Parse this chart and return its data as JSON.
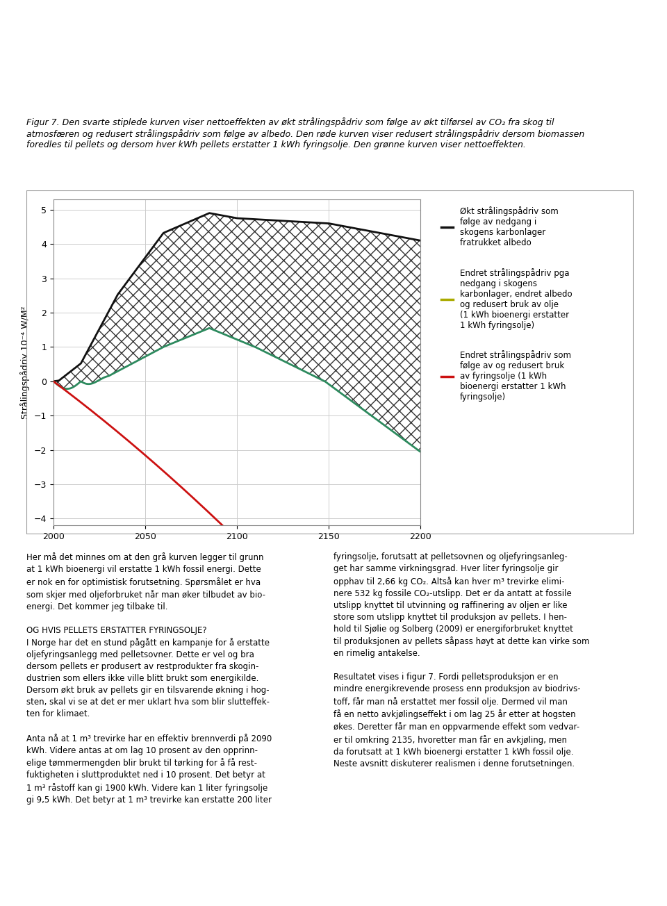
{
  "ylabel": "Strålingspådriv 10⁻⁴ W/M²",
  "xlim": [
    2000,
    2200
  ],
  "ylim": [
    -4.2,
    5.3
  ],
  "yticks": [
    -4,
    -3,
    -2,
    -1,
    0,
    1,
    2,
    3,
    4,
    5
  ],
  "xticks": [
    2000,
    2050,
    2100,
    2150,
    2200
  ],
  "black_color": "#111111",
  "green_color": "#2d8a5e",
  "red_color": "#cc1111",
  "grid_color": "#cccccc",
  "fig_bg": "#ffffff",
  "legend_entries": [
    "Økt strålingspådriv som\nfølge av nedgang i\nskogens karbonlager\nfratrukket albedo",
    "Endret strålingspådriv pga\nnedgang i skogens\nkarbonlager, endret albedo\nog redusert bruk av olje\n(1 kWh bioenergi erstatter\n1 kWh fyringsolje)",
    "Endret strålingspådriv som\nfølge av og redusert bruk\nav fyringsolje (1 kWh\nbioenergi erstatter 1 kWh\nfyringsolje)"
  ],
  "legend_colors": [
    "#111111",
    "#aaaa00",
    "#cc1111"
  ],
  "top_text_lines": [
    "Figur 7. Den svarte stiplede kurven viser nettoeffekten av økt strålingspådriv som følge av økt tilførsel av CO₂ fra skog til",
    "atmosfæren og redusert strålingspådriv som følge av albedo. Den røde kurven viser redusert strålingspådriv dersom biomassen",
    "foredles til pellets og dersom hver kWh pellets erstatter 1 kWh fyringsolje. Den grønne kurven viser nettoeffekten."
  ],
  "bottom_col1": [
    "Her må det minnes om at den grå kurven legger til grunn",
    "at 1 kWh bioenergi vil erstatte 1 kWh fossil energi. Dette",
    "er nok en for optimistisk forutsetning. Spørsmålet er hva",
    "som skjer med oljeforbruket når man øker tilbudet av bio-",
    "energi. Det kommer jeg tilbake til.",
    "",
    "OG HVIS PELLETS ERSTATTER FYRINGSOLJE?",
    "I Norge har det en stund pågått en kampanje for å erstatte",
    "oljefyringsanlegg med pelletsovner. Dette er vel og bra",
    "dersom pellets er produsert av restprodukter fra skogin-",
    "dustrien som ellers ikke ville blitt brukt som energikilde.",
    "Dersom økt bruk av pellets gir en tilsvarende økning i hog-",
    "sten, skal vi se at det er mer uklart hva som blir slutteffek-",
    "ten for klimaet.",
    "",
    "Anta nå at 1 m³ trevirke har en effektiv brennverdi på 2090",
    "kWh. Videre antas at om lag 10 prosent av den opprinn-",
    "elige tømmermengden blir brukt til tørking for å få rest-",
    "fuktigheten i sluttproduktet ned i 10 prosent. Det betyr at",
    "1 m³ råstoff kan gi 1900 kWh. Videre kan 1 liter fyringsolje",
    "gi 9,5 kWh. Det betyr at 1 m³ trevirke kan erstatte 200 liter"
  ]
}
